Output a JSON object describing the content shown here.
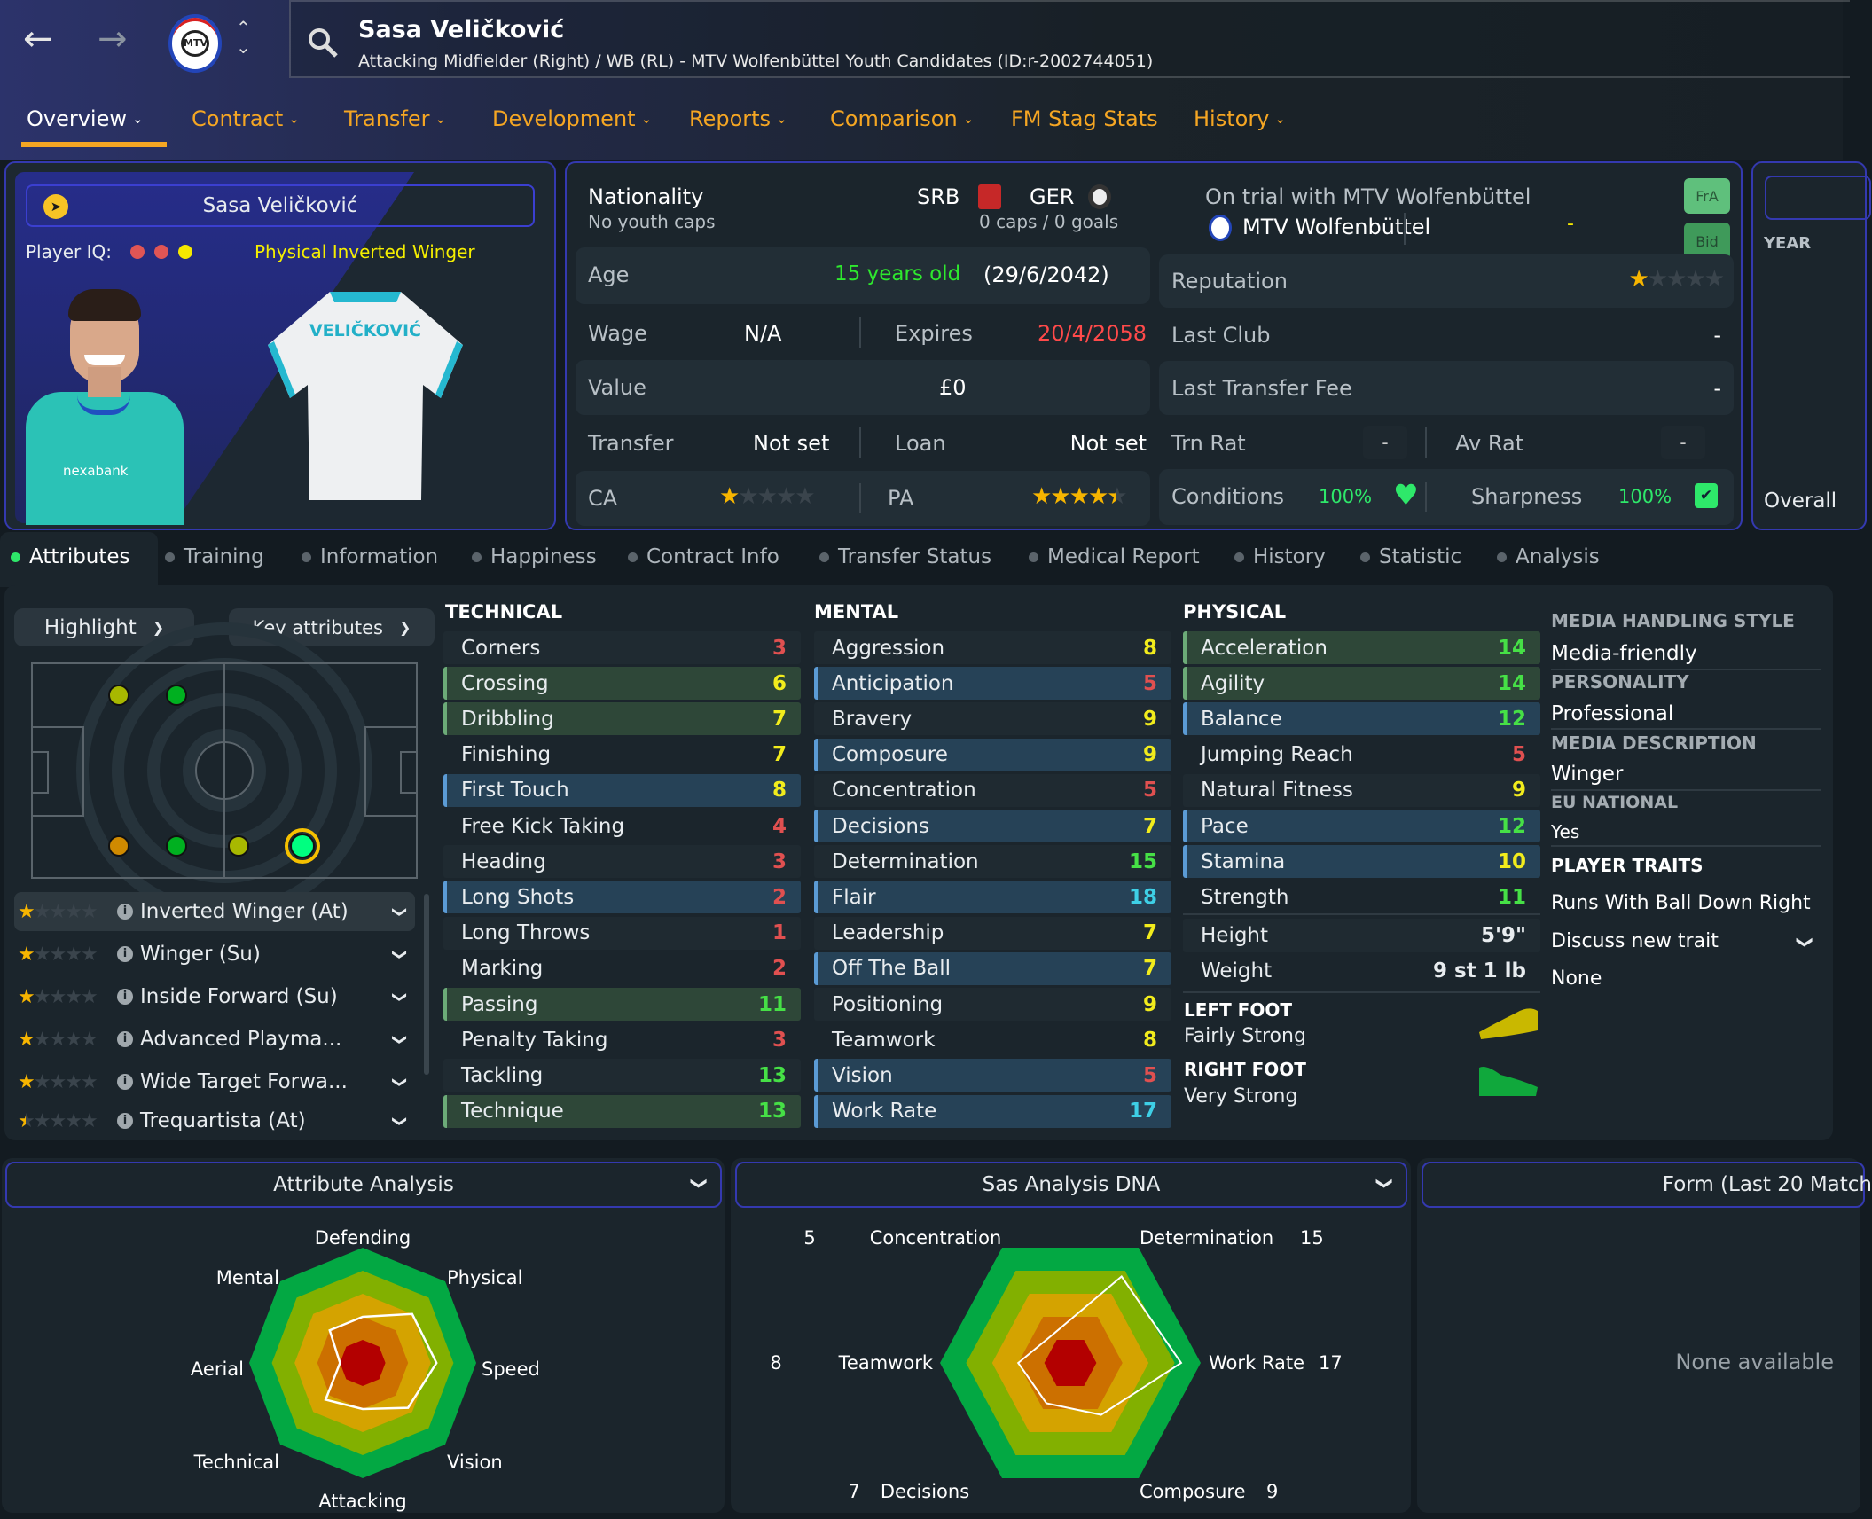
{
  "header": {
    "player_name": "Sasa Veličković",
    "subtitle": "Attacking Midfielder (Right) / WB (RL) - MTV Wolfenbüttel Youth Candidates (ID:r-2002744051)",
    "icons": [
      "back-arrow-icon",
      "forward-arrow-icon",
      "club-badge-icon",
      "up-down-chevron-icon",
      "search-icon"
    ]
  },
  "nav": [
    {
      "label": "Overview",
      "active": true,
      "dropdown": true
    },
    {
      "label": "Contract",
      "dropdown": true
    },
    {
      "label": "Transfer",
      "dropdown": true
    },
    {
      "label": "Development",
      "dropdown": true
    },
    {
      "label": "Reports",
      "dropdown": true
    },
    {
      "label": "Comparison",
      "dropdown": true
    },
    {
      "label": "FM Stag Stats",
      "dropdown": false
    },
    {
      "label": "History",
      "dropdown": true
    }
  ],
  "card": {
    "name": "Sasa Veličković",
    "iq_label": "Player IQ:",
    "iq_dots": [
      "#e05555",
      "#e05555",
      "#f5e800"
    ],
    "role_tag": "Physical Inverted Winger",
    "shirt_name": "VELIČKOVIĆ",
    "sponsor": "nexabank"
  },
  "info": {
    "nationality_label": "Nationality",
    "youth_caps": "No youth caps",
    "nation1": "SRB",
    "nation2": "GER",
    "caps": "0 caps / 0 goals",
    "age_label": "Age",
    "age": "15 years old",
    "dob": "(29/6/2042)",
    "wage_label": "Wage",
    "wage": "N/A",
    "expires_label": "Expires",
    "expires": "20/4/2058",
    "value_label": "Value",
    "value": "£0",
    "transfer_label": "Transfer",
    "transfer": "Not set",
    "loan_label": "Loan",
    "loan": "Not set",
    "ca_label": "CA",
    "ca_stars": 1,
    "pa_label": "PA",
    "pa_stars": 4.5,
    "trial": "On trial with MTV Wolfenbüttel",
    "club": "MTV Wolfenbüttel",
    "club_dash": "-",
    "fra_button": "FrA",
    "bid_button": "Bid",
    "reputation_label": "Reputation",
    "reputation_stars": 1,
    "last_club_label": "Last Club",
    "last_club": "-",
    "last_fee_label": "Last Transfer Fee",
    "last_fee": "-",
    "trn_rat_label": "Trn Rat",
    "trn_rat": "-",
    "av_rat_label": "Av Rat",
    "av_rat": "-",
    "conditions_label": "Conditions",
    "conditions": "100%",
    "sharpness_label": "Sharpness",
    "sharpness": "100%"
  },
  "side_panel": {
    "year_label": "YEAR",
    "overall_label": "Overall"
  },
  "subtabs": [
    "Attributes",
    "Training",
    "Information",
    "Happiness",
    "Contract Info",
    "Transfer Status",
    "Medical Report",
    "History",
    "Statistic",
    "Analysis"
  ],
  "controls": {
    "highlight": "Highlight",
    "key_attributes": "Key attributes"
  },
  "pitch_positions": [
    {
      "color": "#a8b800"
    },
    {
      "color": "#00b020"
    },
    {
      "color": "#d08a00"
    },
    {
      "color": "#00b020"
    },
    {
      "color": "#a8b800"
    },
    {
      "color": "#00ff80",
      "selected": true
    }
  ],
  "roles": [
    {
      "label": "Inverted Winger (At)",
      "stars": 1,
      "selected": true
    },
    {
      "label": "Winger (Su)",
      "stars": 1
    },
    {
      "label": "Inside Forward (Su)",
      "stars": 1
    },
    {
      "label": "Advanced Playma...",
      "stars": 1
    },
    {
      "label": "Wide Target Forwa...",
      "stars": 1
    },
    {
      "label": "Trequartista (At)",
      "stars": 0.5
    }
  ],
  "attributes": {
    "technical_title": "TECHNICAL",
    "technical": [
      {
        "name": "Corners",
        "value": 3,
        "hl": ""
      },
      {
        "name": "Crossing",
        "value": 6,
        "hl": "green"
      },
      {
        "name": "Dribbling",
        "value": 7,
        "hl": "green"
      },
      {
        "name": "Finishing",
        "value": 7,
        "hl": ""
      },
      {
        "name": "First Touch",
        "value": 8,
        "hl": "blue"
      },
      {
        "name": "Free Kick Taking",
        "value": 4,
        "hl": ""
      },
      {
        "name": "Heading",
        "value": 3,
        "hl": ""
      },
      {
        "name": "Long Shots",
        "value": 2,
        "hl": "blue"
      },
      {
        "name": "Long Throws",
        "value": 1,
        "hl": ""
      },
      {
        "name": "Marking",
        "value": 2,
        "hl": ""
      },
      {
        "name": "Passing",
        "value": 11,
        "hl": "green"
      },
      {
        "name": "Penalty Taking",
        "value": 3,
        "hl": ""
      },
      {
        "name": "Tackling",
        "value": 13,
        "hl": ""
      },
      {
        "name": "Technique",
        "value": 13,
        "hl": "green"
      }
    ],
    "mental_title": "MENTAL",
    "mental": [
      {
        "name": "Aggression",
        "value": 8,
        "hl": ""
      },
      {
        "name": "Anticipation",
        "value": 5,
        "hl": "blue"
      },
      {
        "name": "Bravery",
        "value": 9,
        "hl": ""
      },
      {
        "name": "Composure",
        "value": 9,
        "hl": "blue"
      },
      {
        "name": "Concentration",
        "value": 5,
        "hl": ""
      },
      {
        "name": "Decisions",
        "value": 7,
        "hl": "blue"
      },
      {
        "name": "Determination",
        "value": 15,
        "hl": ""
      },
      {
        "name": "Flair",
        "value": 18,
        "hl": "blue"
      },
      {
        "name": "Leadership",
        "value": 7,
        "hl": ""
      },
      {
        "name": "Off The Ball",
        "value": 7,
        "hl": "blue"
      },
      {
        "name": "Positioning",
        "value": 9,
        "hl": ""
      },
      {
        "name": "Teamwork",
        "value": 8,
        "hl": ""
      },
      {
        "name": "Vision",
        "value": 5,
        "hl": "blue"
      },
      {
        "name": "Work Rate",
        "value": 17,
        "hl": "blue"
      }
    ],
    "physical_title": "PHYSICAL",
    "physical": [
      {
        "name": "Acceleration",
        "value": 14,
        "hl": "green"
      },
      {
        "name": "Agility",
        "value": 14,
        "hl": "green"
      },
      {
        "name": "Balance",
        "value": 12,
        "hl": "blue"
      },
      {
        "name": "Jumping Reach",
        "value": 5,
        "hl": ""
      },
      {
        "name": "Natural Fitness",
        "value": 9,
        "hl": ""
      },
      {
        "name": "Pace",
        "value": 12,
        "hl": "blue"
      },
      {
        "name": "Stamina",
        "value": 10,
        "hl": "blue"
      },
      {
        "name": "Strength",
        "value": 11,
        "hl": ""
      }
    ],
    "height_label": "Height",
    "height": "5'9\"",
    "weight_label": "Weight",
    "weight": "9 st 1 lb",
    "left_foot_label": "LEFT FOOT",
    "left_foot": "Fairly Strong",
    "left_foot_color": "#c9b800",
    "right_foot_label": "RIGHT FOOT",
    "right_foot": "Very Strong",
    "right_foot_color": "#10a83c"
  },
  "profile": {
    "media_style_label": "MEDIA HANDLING STYLE",
    "media_style": "Media-friendly",
    "personality_label": "PERSONALITY",
    "personality": "Professional",
    "media_desc_label": "MEDIA DESCRIPTION",
    "media_desc": "Winger",
    "eu_label": "EU NATIONAL",
    "eu": "Yes",
    "traits_label": "PLAYER TRAITS",
    "trait1": "Runs With Ball Down Right",
    "discuss": "Discuss new trait",
    "traits_none": "None"
  },
  "analysis": {
    "title": "Attribute Analysis",
    "axes": [
      "Defending",
      "Physical",
      "Speed",
      "Vision",
      "Attacking",
      "Technical",
      "Aerial",
      "Mental"
    ],
    "values": [
      8,
      12,
      13,
      11,
      8,
      9,
      4,
      8
    ],
    "max": 20
  },
  "dna": {
    "title": "Sas Analysis DNA",
    "axes": [
      {
        "name": "Concentration",
        "value": 5
      },
      {
        "name": "Determination",
        "value": 15
      },
      {
        "name": "Work Rate",
        "value": 17
      },
      {
        "name": "Composure",
        "value": 9
      },
      {
        "name": "Decisions",
        "value": 7
      },
      {
        "name": "Teamwork",
        "value": 8
      }
    ],
    "max": 20
  },
  "form": {
    "title": "Form (Last 20 Match",
    "empty": "None available"
  },
  "colors": {
    "accent": "#f5a623",
    "panel_border": "#3439b0",
    "low": "#e05050",
    "mid": "#f2ec1c",
    "good": "#46e046",
    "high": "#3ecfe6",
    "rings": [
      "#03a843",
      "#82b000",
      "#d4a300",
      "#cc7000",
      "#b30000"
    ]
  }
}
